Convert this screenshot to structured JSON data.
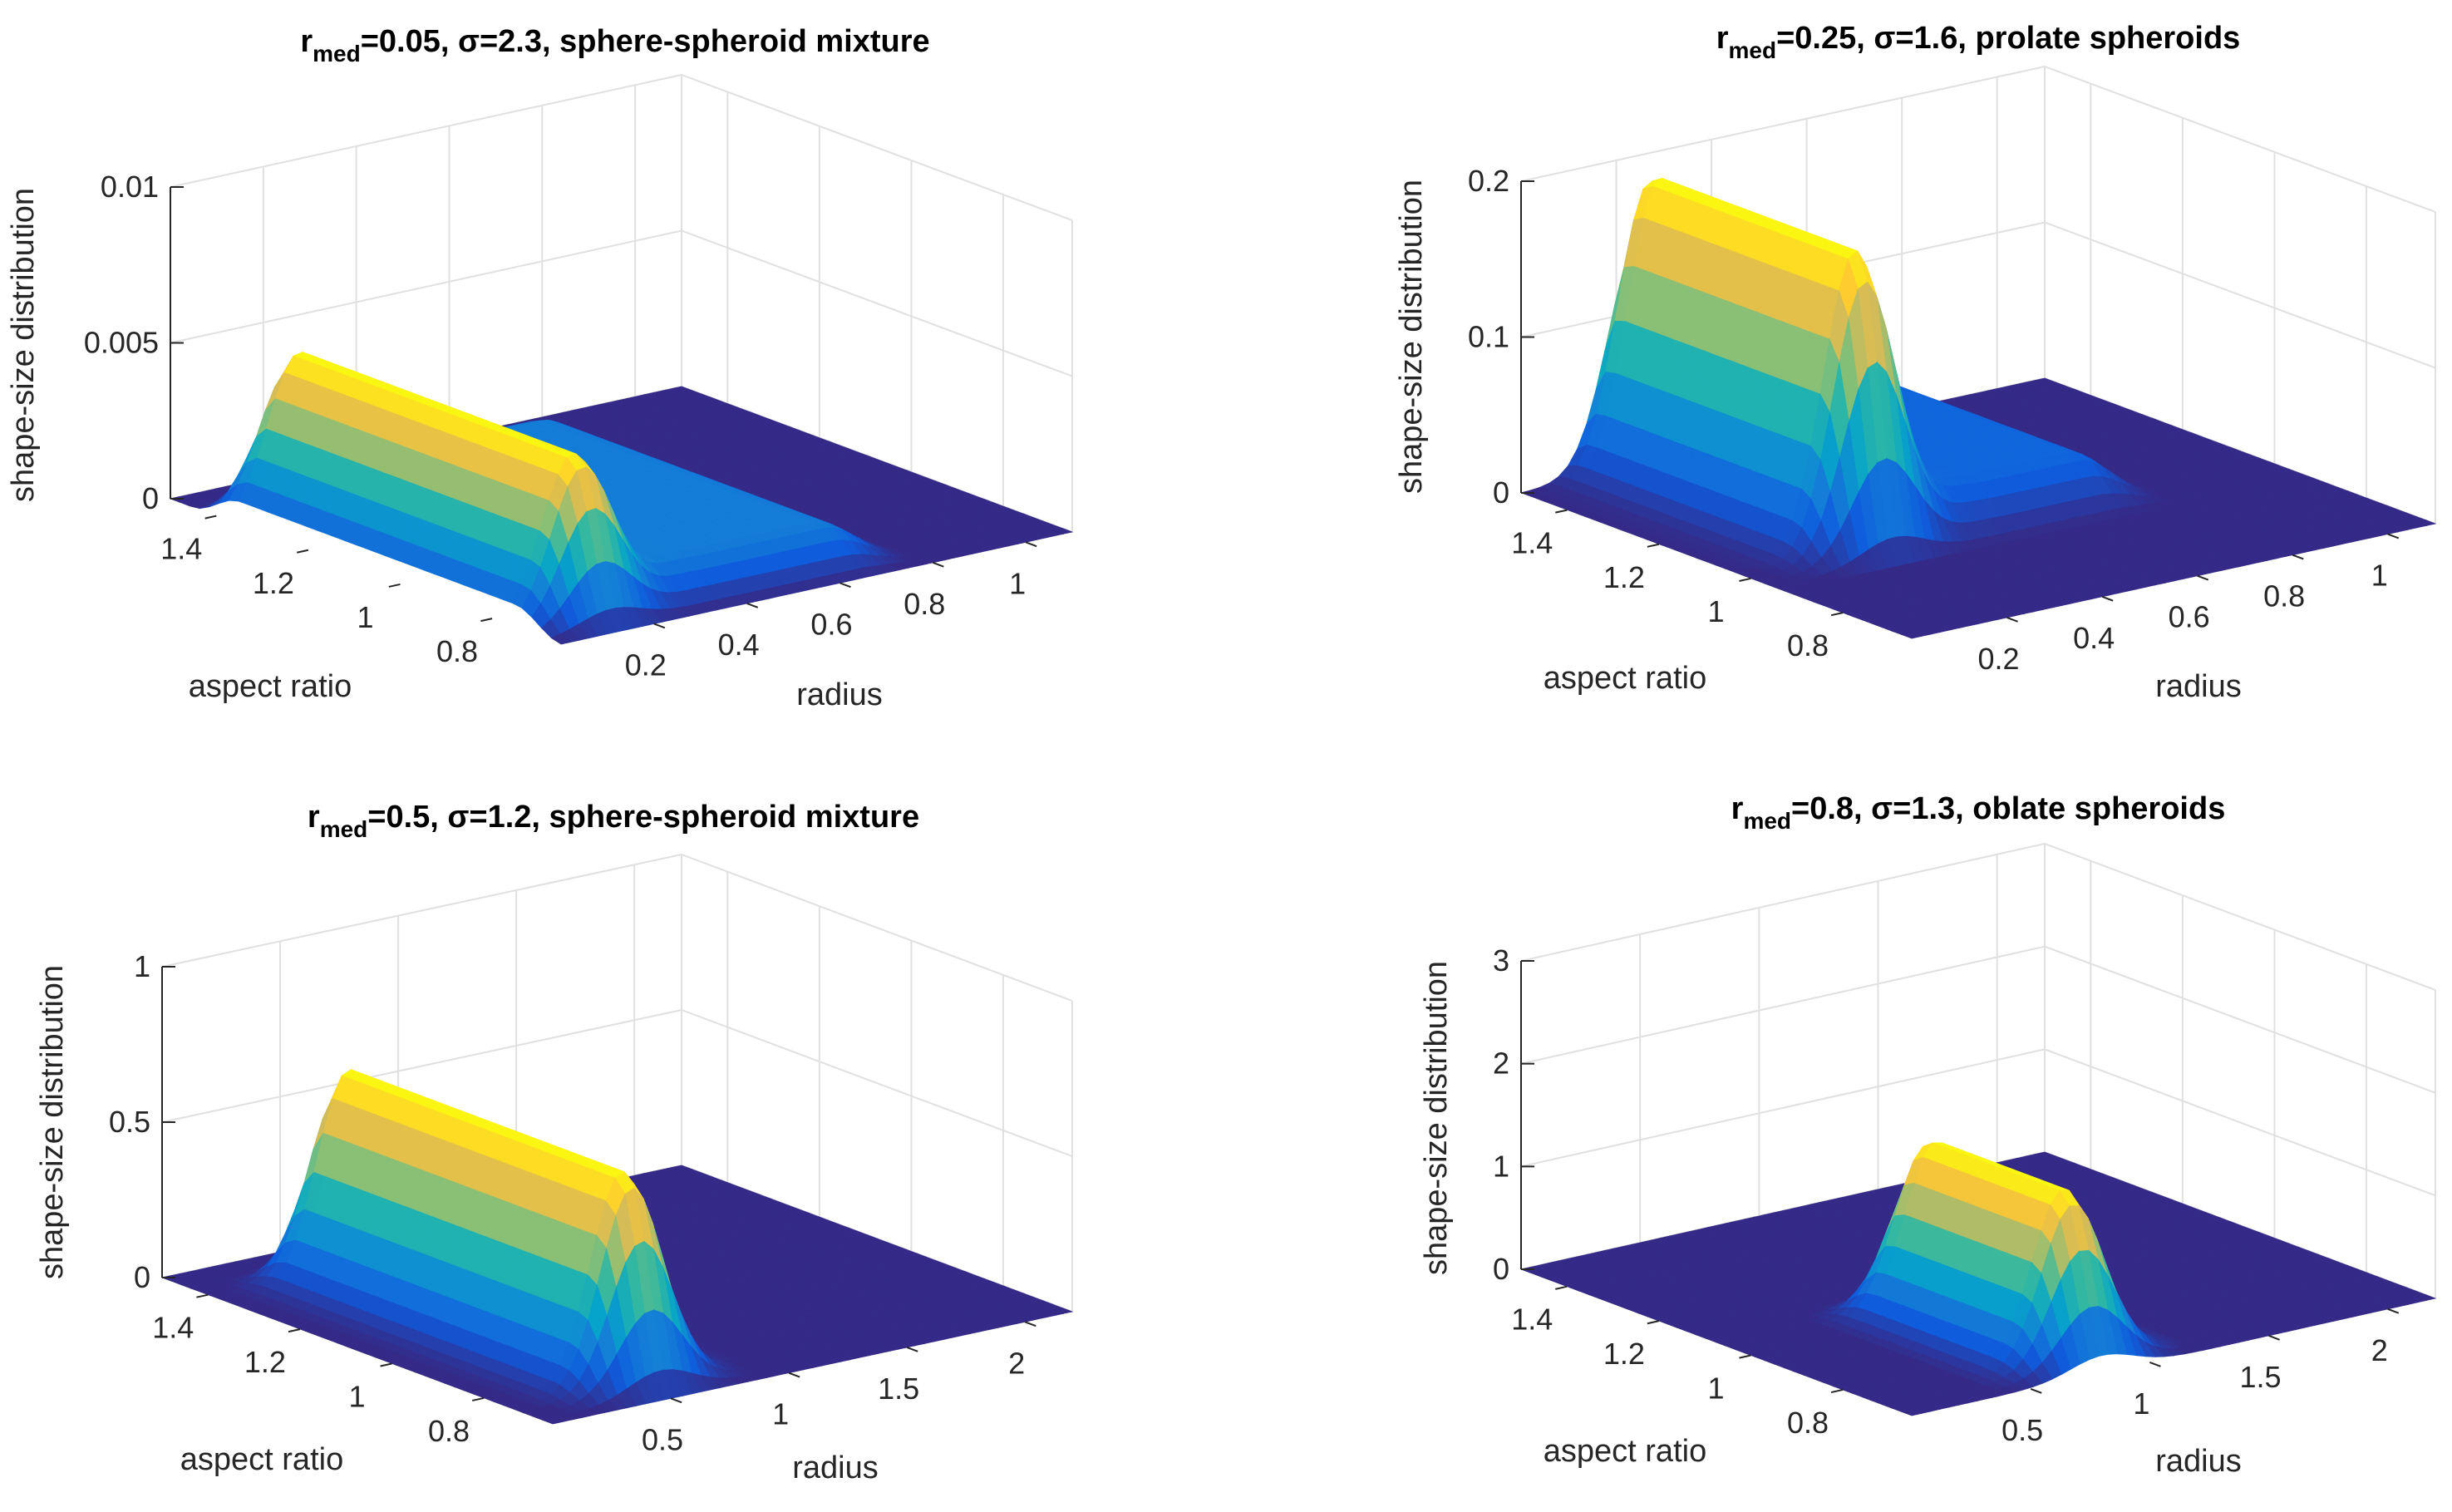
{
  "figure": {
    "colormap": [
      "#352a87",
      "#0f5cdd",
      "#1481d6",
      "#06a4ca",
      "#2eb7a4",
      "#87bf77",
      "#d1bb59",
      "#fec832",
      "#f9fb0e"
    ],
    "floor_color": "#352a87",
    "grid_color": "#e0e0e0",
    "axis_color": "#262626"
  },
  "chart_data": [
    {
      "type": "surface3d",
      "title_prefix": "r",
      "title_subscript": "med",
      "title_rest": "=0.05, σ=2.3, sphere-spheroid mixture",
      "xlabel": "radius",
      "ylabel": "aspect ratio",
      "zlabel": "shape-size distribution",
      "xlim": [
        0,
        1.1
      ],
      "ylim": [
        0.65,
        1.5
      ],
      "zlim": [
        0,
        0.01
      ],
      "xticks": [
        0.2,
        0.4,
        0.6,
        0.8,
        1
      ],
      "xtick_labels": [
        "0.2",
        "0.4",
        "0.6",
        "0.8",
        "1"
      ],
      "yticks": [
        0.8,
        1,
        1.2,
        1.4
      ],
      "ytick_labels": [
        "0.8",
        "1",
        "1.2",
        "1.4"
      ],
      "zticks": [
        0,
        0.005,
        0.01
      ],
      "ztick_labels": [
        "0",
        "0.005",
        "0.01"
      ],
      "surface": {
        "peak_radius": 0.13,
        "ratio_range": [
          0.72,
          1.38
        ],
        "peak": 0.0051,
        "shoulder_radius": 0.7,
        "shoulder": 0.0012
      }
    },
    {
      "type": "surface3d",
      "title_prefix": "r",
      "title_subscript": "med",
      "title_rest": "=0.25, σ=1.6, prolate spheroids",
      "xlabel": "radius",
      "ylabel": "aspect ratio",
      "zlabel": "shape-size distribution",
      "xlim": [
        0,
        1.1
      ],
      "ylim": [
        0.65,
        1.5
      ],
      "zlim": [
        0,
        0.2
      ],
      "xticks": [
        0.2,
        0.4,
        0.6,
        0.8,
        1
      ],
      "xtick_labels": [
        "0.2",
        "0.4",
        "0.6",
        "0.8",
        "1"
      ],
      "yticks": [
        0.8,
        1,
        1.2,
        1.4
      ],
      "ytick_labels": [
        "0.8",
        "1",
        "1.2",
        "1.4"
      ],
      "zticks": [
        0,
        0.1,
        0.2
      ],
      "ztick_labels": [
        "0",
        "0.1",
        "0.2"
      ],
      "surface": {
        "peak_radius": 0.25,
        "ratio_range": [
          1.0,
          1.5
        ],
        "peak": 0.19,
        "shoulder_radius": 0.75,
        "shoulder": 0.03
      }
    },
    {
      "type": "surface3d",
      "title_prefix": "r",
      "title_subscript": "med",
      "title_rest": "=0.5, σ=1.2, sphere-spheroid mixture",
      "xlabel": "radius",
      "ylabel": "aspect ratio",
      "zlabel": "shape-size distribution",
      "xlim": [
        0,
        2.2
      ],
      "ylim": [
        0.65,
        1.5
      ],
      "zlim": [
        0,
        1
      ],
      "xticks": [
        0.5,
        1,
        1.5,
        2
      ],
      "xtick_labels": [
        "0.5",
        "1",
        "1.5",
        "2"
      ],
      "yticks": [
        0.8,
        1,
        1.2,
        1.4
      ],
      "ytick_labels": [
        "0.8",
        "1",
        "1.2",
        "1.4"
      ],
      "zticks": [
        0,
        0.5,
        1
      ],
      "ztick_labels": [
        "0",
        "0.5",
        "1"
      ],
      "surface": {
        "peak_radius": 0.5,
        "ratio_range": [
          0.72,
          1.38
        ],
        "peak": 0.67,
        "shoulder_radius": 0,
        "shoulder": 0
      }
    },
    {
      "type": "surface3d",
      "title_prefix": "r",
      "title_subscript": "med",
      "title_rest": "=0.8, σ=1.3, oblate spheroids",
      "xlabel": "radius",
      "ylabel": "aspect ratio",
      "zlabel": "shape-size distribution",
      "xlim": [
        0,
        2.2
      ],
      "ylim": [
        0.65,
        1.5
      ],
      "zlim": [
        0,
        3
      ],
      "xticks": [
        0.5,
        1,
        1.5,
        2
      ],
      "xtick_labels": [
        "0.5",
        "1",
        "1.5",
        "2"
      ],
      "yticks": [
        0.8,
        1,
        1.2,
        1.4
      ],
      "ytick_labels": [
        "0.8",
        "1",
        "1.2",
        "1.4"
      ],
      "zticks": [
        0,
        1,
        2,
        3
      ],
      "ztick_labels": [
        "0",
        "1",
        "2",
        "3"
      ],
      "surface": {
        "peak_radius": 0.8,
        "ratio_range": [
          0.7,
          1.05
        ],
        "peak": 1.65,
        "shoulder_radius": 0,
        "shoulder": 0
      }
    }
  ]
}
